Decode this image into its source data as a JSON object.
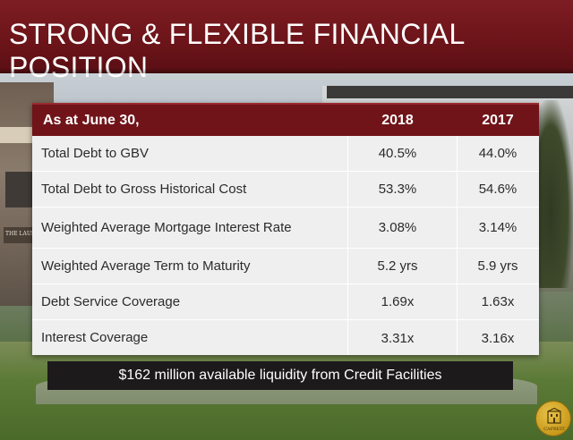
{
  "slide": {
    "title": "STRONG & FLEXIBLE FINANCIAL POSITION",
    "colors": {
      "title_band": "#6b1419",
      "table_header": "#701419",
      "table_body": "#efefef",
      "banner": "#1c1a1b"
    }
  },
  "table": {
    "header": {
      "label": "As at June 30,",
      "col1": "2018",
      "col2": "2017"
    },
    "rows": [
      {
        "label": "Total Debt to GBV",
        "v2018": "40.5%",
        "v2017": "44.0%"
      },
      {
        "label": "Total Debt to Gross Historical Cost",
        "v2018": "53.3%",
        "v2017": "54.6%"
      },
      {
        "label": "Weighted Average Mortgage Interest Rate",
        "v2018": "3.08%",
        "v2017": "3.14%"
      },
      {
        "label": "Weighted Average Term to Maturity",
        "v2018": "5.2 yrs",
        "v2017": "5.9 yrs"
      },
      {
        "label": "Debt Service Coverage",
        "v2018": "1.69x",
        "v2017": "1.63x"
      },
      {
        "label": "Interest Coverage",
        "v2018": "3.31x",
        "v2017": "3.16x"
      }
    ]
  },
  "banner": {
    "text": "$162 million available liquidity from Credit Facilities"
  },
  "background": {
    "sign_text": "THE LAUR"
  },
  "logo": {
    "icon": "building-crest-icon",
    "text": "CAPREIT"
  }
}
